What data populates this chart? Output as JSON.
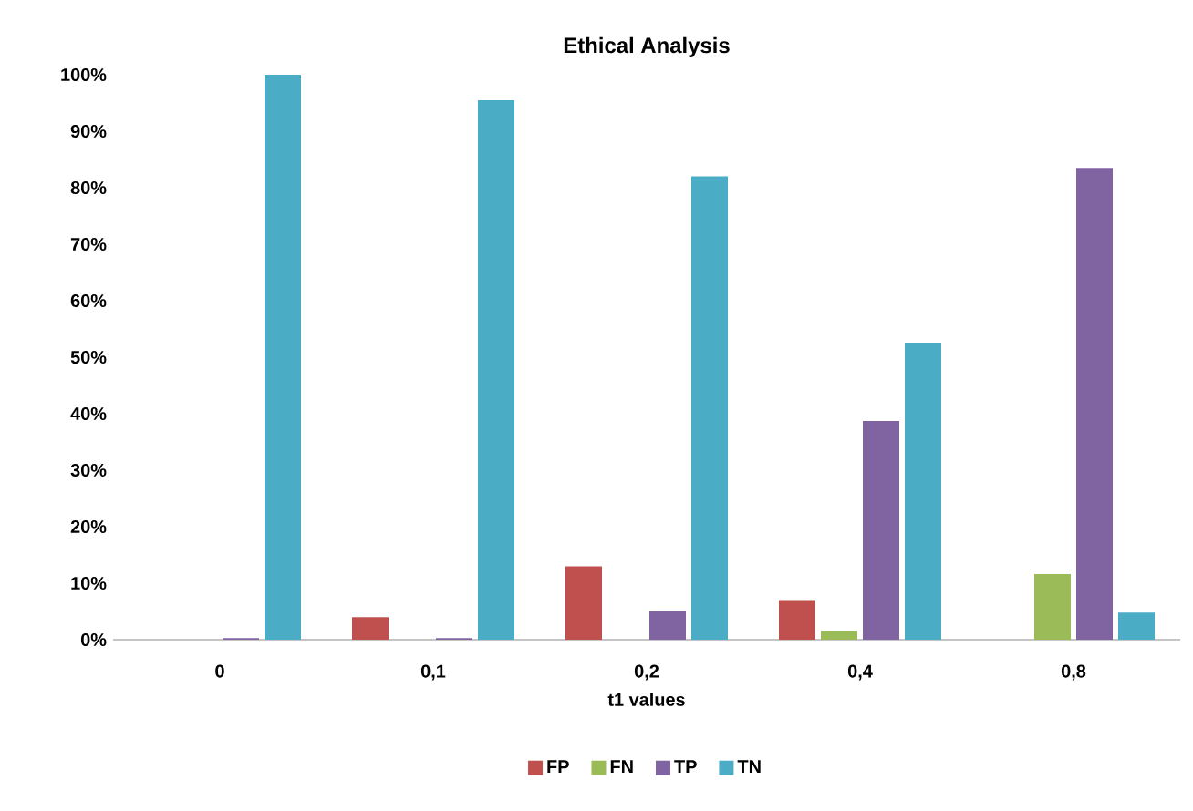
{
  "chart_data": {
    "type": "bar",
    "title": "Ethical Analysis",
    "xlabel": "t1 values",
    "categories": [
      "0",
      "0,1",
      "0,2",
      "0,4",
      "0,8"
    ],
    "series": [
      {
        "name": "FP",
        "color": "#c0504d",
        "values": [
          0,
          4,
          13,
          7,
          0
        ]
      },
      {
        "name": "FN",
        "color": "#9bbb59",
        "values": [
          0,
          0,
          0,
          1.6,
          11.6
        ]
      },
      {
        "name": "TP",
        "color": "#8064a2",
        "values": [
          0.3,
          0.3,
          5,
          38.7,
          83.5
        ]
      },
      {
        "name": "TN",
        "color": "#4bacc6",
        "values": [
          100,
          95.5,
          82,
          52.6,
          4.8
        ]
      }
    ],
    "ylim": [
      0,
      100
    ],
    "yticks": [
      {
        "value": 0,
        "label": "0%"
      },
      {
        "value": 10,
        "label": "10%"
      },
      {
        "value": 20,
        "label": "20%"
      },
      {
        "value": 30,
        "label": "30%"
      },
      {
        "value": 40,
        "label": "40%"
      },
      {
        "value": 50,
        "label": "50%"
      },
      {
        "value": 60,
        "label": "60%"
      },
      {
        "value": 70,
        "label": "70%"
      },
      {
        "value": 80,
        "label": "80%"
      },
      {
        "value": 90,
        "label": "90%"
      },
      {
        "value": 100,
        "label": "100%"
      }
    ],
    "legend": "bottom"
  }
}
